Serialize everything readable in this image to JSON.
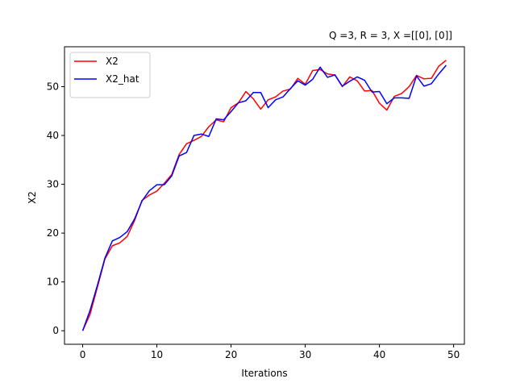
{
  "chart_data": {
    "type": "line",
    "title": "Q =3, R = 3, X =[[0], [0]]",
    "xlabel": "Iterations",
    "ylabel": "X2",
    "xlim": [
      -2.45,
      51.45
    ],
    "ylim": [
      -2.77,
      58.17
    ],
    "xticks": [
      0,
      10,
      20,
      30,
      40,
      50
    ],
    "yticks": [
      0,
      10,
      20,
      30,
      40,
      50
    ],
    "legend_position": "upper left",
    "grid": false,
    "x": [
      0,
      1,
      2,
      3,
      4,
      5,
      6,
      7,
      8,
      9,
      10,
      11,
      12,
      13,
      14,
      15,
      16,
      17,
      18,
      19,
      20,
      21,
      22,
      23,
      24,
      25,
      26,
      27,
      28,
      29,
      30,
      31,
      32,
      33,
      34,
      35,
      36,
      37,
      38,
      39,
      40,
      41,
      42,
      43,
      44,
      45,
      46,
      47,
      48,
      49
    ],
    "series": [
      {
        "name": "X2",
        "color": "#ff0000",
        "values": [
          0.0,
          3.4,
          9.0,
          14.7,
          17.4,
          18.0,
          19.3,
          22.6,
          26.7,
          27.8,
          28.6,
          30.2,
          32.0,
          36.1,
          38.3,
          39.0,
          39.8,
          41.8,
          43.2,
          42.8,
          45.7,
          46.7,
          49.0,
          47.5,
          45.4,
          47.3,
          47.9,
          49.1,
          49.5,
          51.7,
          50.5,
          53.3,
          53.5,
          52.6,
          52.4,
          50.0,
          52.0,
          51.2,
          49.1,
          49.2,
          46.6,
          45.2,
          48.0,
          48.6,
          50.0,
          52.3,
          51.6,
          51.7,
          54.2,
          55.4
        ]
      },
      {
        "name": "X2_hat",
        "color": "#0000ff",
        "values": [
          0.0,
          4.2,
          9.4,
          14.9,
          18.4,
          19.1,
          20.3,
          22.9,
          26.6,
          28.7,
          29.9,
          29.9,
          31.7,
          35.8,
          36.5,
          40.0,
          40.3,
          39.8,
          43.4,
          43.2,
          44.9,
          46.7,
          47.1,
          48.8,
          48.8,
          45.7,
          47.3,
          47.9,
          49.6,
          51.2,
          50.3,
          51.5,
          54.0,
          51.9,
          52.4,
          50.1,
          51.1,
          52.0,
          51.3,
          48.9,
          49.0,
          46.5,
          47.7,
          47.7,
          47.6,
          52.2,
          50.1,
          50.6,
          52.6,
          54.4
        ]
      }
    ]
  }
}
